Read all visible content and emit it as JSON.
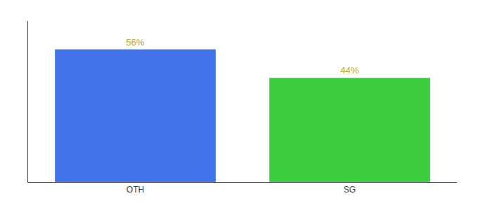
{
  "chart_data": {
    "type": "bar",
    "categories": [
      "OTH",
      "SG"
    ],
    "values": [
      56,
      44
    ],
    "value_labels": [
      "56%",
      "44%"
    ],
    "colors": [
      "#4472e8",
      "#3dcc3d"
    ],
    "data_labels": true,
    "ylim": [
      0,
      68
    ],
    "grid": false,
    "tick_labels": "x"
  }
}
